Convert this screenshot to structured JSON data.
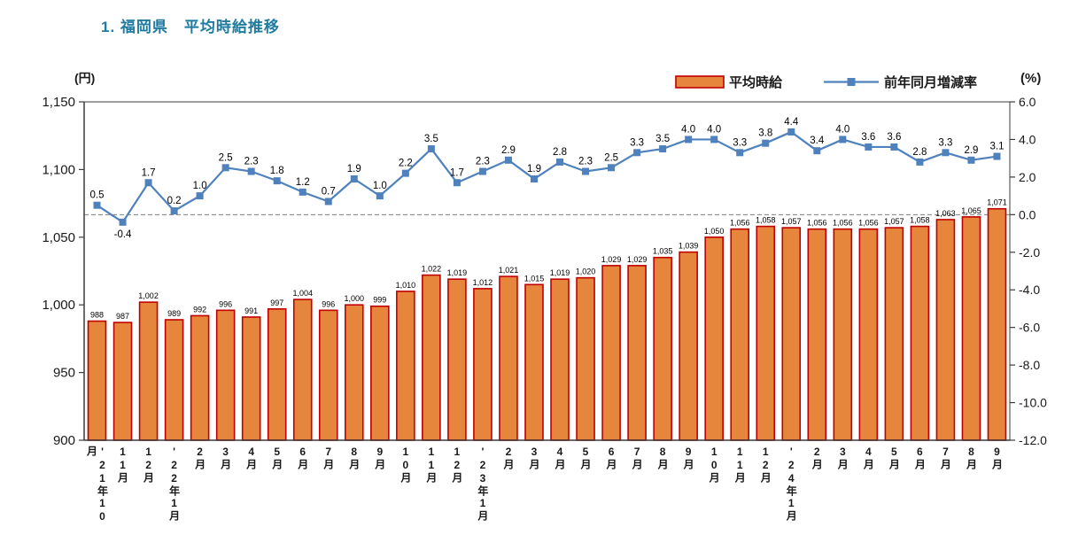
{
  "page": {
    "title": "1. 福岡県　平均時給推移"
  },
  "chart_data": {
    "type": "bar",
    "combo": "bar + line (dual axis)",
    "title": "1. 福岡県　平均時給推移",
    "categories": [
      "'21年10月",
      "11月",
      "12月",
      "'22年1月",
      "2月",
      "3月",
      "4月",
      "5月",
      "6月",
      "7月",
      "8月",
      "9月",
      "10月",
      "11月",
      "12月",
      "'23年1月",
      "2月",
      "3月",
      "4月",
      "5月",
      "6月",
      "7月",
      "8月",
      "9月",
      "10月",
      "11月",
      "12月",
      "'24年1月",
      "2月",
      "3月",
      "4月",
      "5月",
      "6月",
      "7月",
      "8月",
      "9月"
    ],
    "series": [
      {
        "name": "平均時給",
        "kind": "bar",
        "axis": "left",
        "values": [
          988,
          987,
          1002,
          989,
          992,
          996,
          991,
          997,
          1004,
          996,
          1000,
          999,
          1010,
          1022,
          1019,
          1012,
          1021,
          1015,
          1019,
          1020,
          1029,
          1029,
          1035,
          1039,
          1050,
          1056,
          1058,
          1057,
          1056,
          1056,
          1056,
          1057,
          1058,
          1063,
          1065,
          1071
        ]
      },
      {
        "name": "前年同月増減率",
        "kind": "line",
        "axis": "right",
        "values": [
          0.5,
          -0.4,
          1.7,
          0.2,
          1.0,
          2.5,
          2.3,
          1.8,
          1.2,
          0.7,
          1.9,
          1.0,
          2.2,
          3.5,
          1.7,
          2.3,
          2.9,
          1.9,
          2.8,
          2.3,
          2.5,
          3.3,
          3.5,
          4.0,
          4.0,
          3.3,
          3.8,
          4.4,
          3.4,
          4.0,
          3.6,
          3.6,
          2.8,
          3.3,
          2.9,
          3.1
        ]
      }
    ],
    "left_axis": {
      "label": "(円)",
      "min": 900,
      "max": 1150,
      "step": 50,
      "ticks": [
        "900",
        "950",
        "1,000",
        "1,050",
        "1,100",
        "1,150"
      ]
    },
    "right_axis": {
      "label": "(%)",
      "min": -12,
      "max": 6,
      "step": 2,
      "ticks": [
        "6.0",
        "4.0",
        "2.0",
        "0.0",
        "-2.0",
        "-4.0",
        "-6.0",
        "-8.0",
        "-10.0",
        "-12.0"
      ]
    },
    "zero_line": {
      "value": 0.0,
      "style": "dashed"
    },
    "legend": {
      "position": "top-right"
    },
    "grid": "off",
    "colors": {
      "title": "#1F7BA0",
      "bar_fill": "#E6853C",
      "bar_border": "#C00000",
      "line": "#4F81BD",
      "axis": "#3B3B3B",
      "zero_line": "#7F7F7F",
      "label": "#000000"
    }
  }
}
